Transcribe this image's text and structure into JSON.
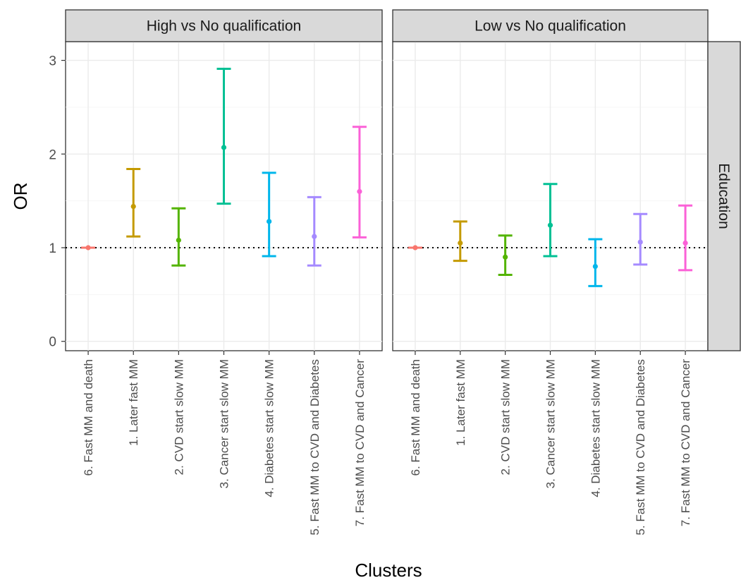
{
  "chart_data": {
    "type": "errorbar",
    "xlabel": "Clusters",
    "ylabel": "OR",
    "ylim": [
      -0.1,
      3.2
    ],
    "yticks": [
      0,
      1,
      2,
      3
    ],
    "reference_line": 1,
    "row_strip": "Education",
    "categories": [
      "6. Fast MM and death",
      "1. Later fast MM",
      "2. CVD start slow MM",
      "3. Cancer start slow MM",
      "4. Diabetes start slow MM",
      "5. Fast MM to CVD and Diabetes",
      "7. Fast MM to CVD and Cancer"
    ],
    "colors": [
      "#F8766D",
      "#C49A00",
      "#53B400",
      "#00C094",
      "#00B6EB",
      "#A58AFF",
      "#FB61D7"
    ],
    "panels": [
      {
        "title": "High vs No qualification",
        "estimates": [
          1.0,
          1.44,
          1.08,
          2.07,
          1.28,
          1.12,
          1.6
        ],
        "lower": [
          1.0,
          1.12,
          0.81,
          1.47,
          0.91,
          0.81,
          1.11
        ],
        "upper": [
          1.0,
          1.84,
          1.42,
          2.91,
          1.8,
          1.54,
          2.29
        ]
      },
      {
        "title": "Low vs No qualification",
        "estimates": [
          1.0,
          1.05,
          0.9,
          1.24,
          0.8,
          1.06,
          1.05
        ],
        "lower": [
          1.0,
          0.86,
          0.71,
          0.91,
          0.59,
          0.82,
          0.76
        ],
        "upper": [
          1.0,
          1.28,
          1.13,
          1.68,
          1.09,
          1.36,
          1.45
        ]
      }
    ]
  }
}
